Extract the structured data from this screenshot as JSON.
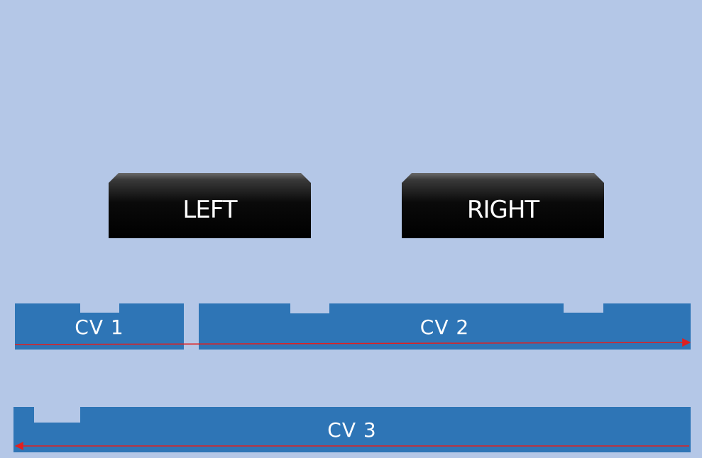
{
  "buttons": {
    "left": {
      "label": "LEFT"
    },
    "right": {
      "label": "RIGHT"
    }
  },
  "conveyors": {
    "cv1": {
      "label": "CV 1"
    },
    "cv2": {
      "label": "CV 2",
      "direction": "right"
    },
    "cv3": {
      "label": "CV 3",
      "direction": "left"
    }
  },
  "colors": {
    "background": "#b4c7e7",
    "conveyor": "#2e75b6",
    "button": "#000000",
    "arrow": "#e02020",
    "text": "#ffffff"
  }
}
